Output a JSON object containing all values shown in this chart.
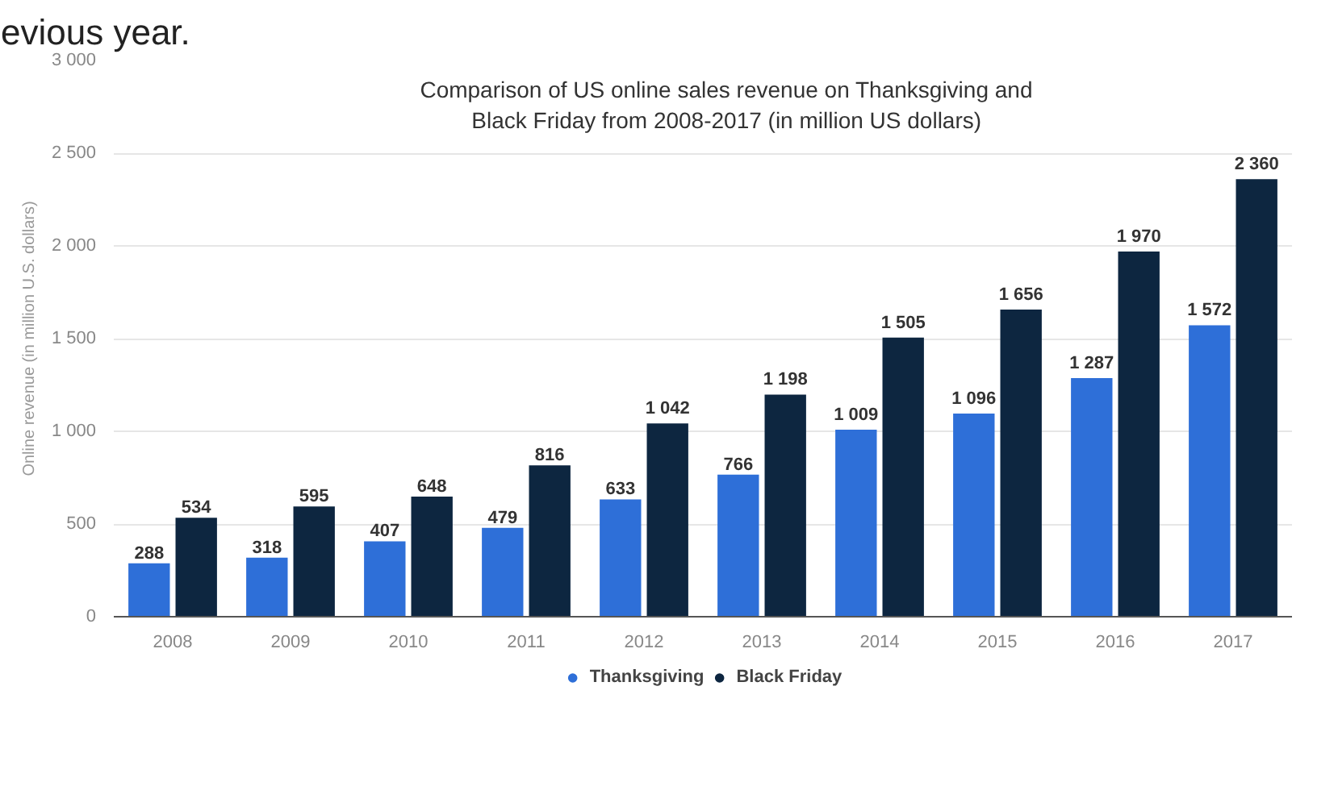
{
  "chart_data": {
    "type": "bar",
    "title": "Comparison of US online sales revenue on Thanksgiving and\nBlack Friday from 2008-2017 (in million US dollars)",
    "ylabel": "Online revenue (in million U.S. dollars)",
    "annotations": [
      "evious year."
    ],
    "categories": [
      "2008",
      "2009",
      "2010",
      "2011",
      "2012",
      "2013",
      "2014",
      "2015",
      "2016",
      "2017"
    ],
    "series": [
      {
        "name": "Thanksgiving",
        "color": "#2e6fd8",
        "values": [
          288,
          318,
          407,
          479,
          633,
          766,
          1009,
          1096,
          1287,
          1572
        ],
        "value_labels": [
          "288",
          "318",
          "407",
          "479",
          "633",
          "766",
          "1 009",
          "1 096",
          "1 287",
          "1 572"
        ]
      },
      {
        "name": "Black Friday",
        "color": "#0d2640",
        "values": [
          534,
          595,
          648,
          816,
          1042,
          1198,
          1505,
          1656,
          1970,
          2360
        ],
        "value_labels": [
          "534",
          "595",
          "648",
          "816",
          "1 042",
          "1 198",
          "1 505",
          "1 656",
          "1 970",
          "2 360"
        ]
      }
    ],
    "ylim": [
      0,
      3000
    ],
    "yticks": [
      0,
      500,
      {
        "value": 1000,
        "label": "1 000"
      },
      {
        "value": 1500,
        "label": "1 500"
      },
      {
        "value": 2000,
        "label": "2 000"
      },
      {
        "value": 2500,
        "label": "2 500"
      },
      {
        "value": 3000,
        "label": "3 000"
      }
    ],
    "grid": "y",
    "legend": "bottom"
  }
}
